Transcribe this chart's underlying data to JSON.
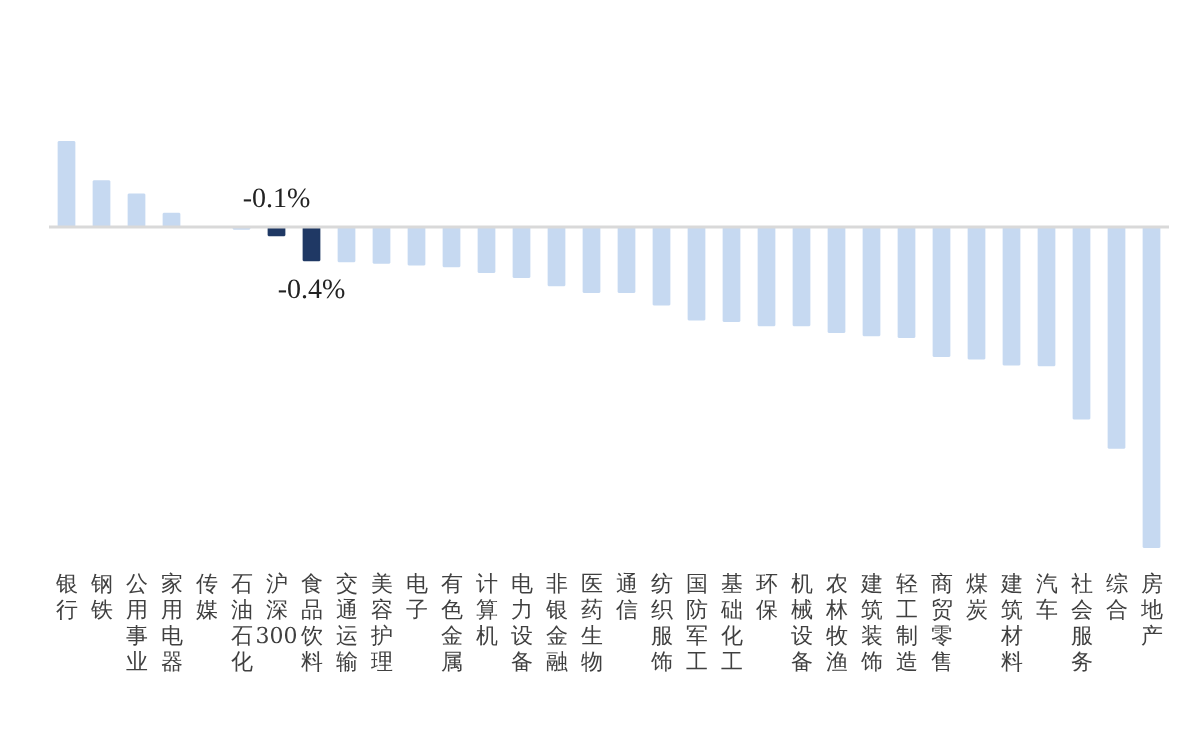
{
  "chart_data": {
    "type": "bar",
    "categories": [
      "银行",
      "钢铁",
      "公用事业",
      "家用电器",
      "传媒",
      "石油石化",
      "沪深300",
      "食品饮料",
      "交通运输",
      "美容护理",
      "电子",
      "有色金属",
      "计算机",
      "电力设备",
      "非银金融",
      "医药生物",
      "通信",
      "纺织服饰",
      "国防军工",
      "基础化工",
      "环保",
      "机械设备",
      "农林牧渔",
      "建筑装饰",
      "轻工制造",
      "商贸零售",
      "煤炭",
      "建筑材料",
      "汽车",
      "社会服务",
      "综合",
      "房地产"
    ],
    "values": [
      1.02,
      0.55,
      0.39,
      0.16,
      null,
      -0.02,
      -0.1,
      -0.4,
      -0.41,
      -0.43,
      -0.45,
      -0.47,
      -0.54,
      -0.6,
      -0.7,
      -0.78,
      -0.78,
      -0.93,
      -1.11,
      -1.13,
      -1.18,
      -1.18,
      -1.26,
      -1.3,
      -1.32,
      -1.55,
      -1.58,
      -1.65,
      -1.66,
      -2.3,
      -2.65,
      -3.84
    ],
    "colors": [
      "#c6d9f1",
      "#c6d9f1",
      "#c6d9f1",
      "#c6d9f1",
      "#c6d9f1",
      "#c6d9f1",
      "#1f3864",
      "#1f3864",
      "#c6d9f1",
      "#c6d9f1",
      "#c6d9f1",
      "#c6d9f1",
      "#c6d9f1",
      "#c6d9f1",
      "#c6d9f1",
      "#c6d9f1",
      "#c6d9f1",
      "#c6d9f1",
      "#c6d9f1",
      "#c6d9f1",
      "#c6d9f1",
      "#c6d9f1",
      "#c6d9f1",
      "#c6d9f1",
      "#c6d9f1",
      "#c6d9f1",
      "#c6d9f1",
      "#c6d9f1",
      "#c6d9f1",
      "#c6d9f1",
      "#c6d9f1",
      "#c6d9f1"
    ],
    "value_labels": [
      null,
      null,
      null,
      null,
      null,
      null,
      "-0.1%",
      "-0.4%",
      null,
      null,
      null,
      null,
      null,
      null,
      null,
      null,
      null,
      null,
      null,
      null,
      null,
      null,
      null,
      null,
      null,
      null,
      null,
      null,
      null,
      null,
      null,
      null
    ],
    "grid": false
  }
}
